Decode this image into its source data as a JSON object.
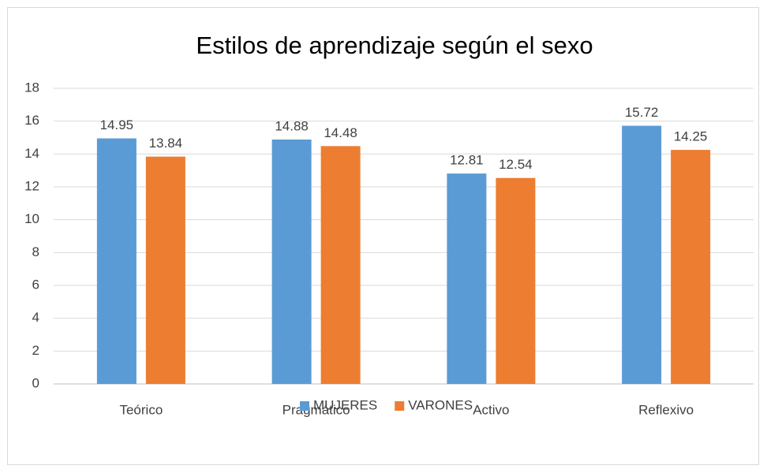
{
  "chart_data": {
    "type": "bar",
    "title": "Estilos de aprendizaje según el sexo",
    "categories": [
      "Teórico",
      "Pragmático",
      "Activo",
      "Reflexivo"
    ],
    "series": [
      {
        "name": "MUJERES",
        "color": "#5b9bd5",
        "values": [
          14.95,
          14.88,
          12.81,
          15.72
        ]
      },
      {
        "name": "VARONES",
        "color": "#ed7d31",
        "values": [
          13.84,
          14.48,
          12.54,
          14.25
        ]
      }
    ],
    "ylim": [
      0,
      18
    ],
    "yticks": [
      0,
      2,
      4,
      6,
      8,
      10,
      12,
      14,
      16,
      18
    ],
    "grid": true,
    "legend": "bottom"
  }
}
